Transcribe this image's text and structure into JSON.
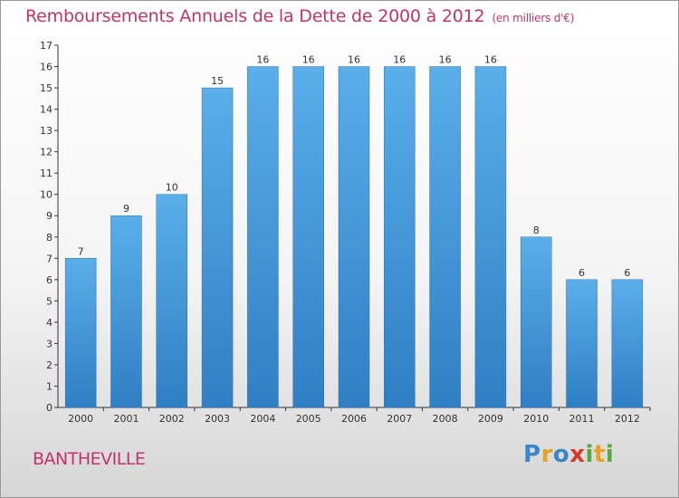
{
  "header": {
    "title": "Remboursements Annuels de la Dette de 2000 à 2012",
    "unit": "(en milliers d'€)"
  },
  "location": "BANTHEVILLE",
  "logo": {
    "letters": [
      "P",
      "r",
      "o",
      "x",
      "i",
      "t",
      "i"
    ],
    "colors": [
      "#3a86c8",
      "#e8a020",
      "#3a86c8",
      "#d23a2a",
      "#58a83c",
      "#e8a020",
      "#58a83c"
    ]
  },
  "chart_data": {
    "type": "bar",
    "categories": [
      "2000",
      "2001",
      "2002",
      "2003",
      "2004",
      "2005",
      "2006",
      "2007",
      "2008",
      "2009",
      "2010",
      "2011",
      "2012"
    ],
    "values": [
      7,
      9,
      10,
      15,
      16,
      16,
      16,
      16,
      16,
      16,
      8,
      6,
      6
    ],
    "title": "Remboursements Annuels de la Dette de 2000 à 2012",
    "subtitle": "(en milliers d'€)",
    "xlabel": "",
    "ylabel": "",
    "ylim": [
      0,
      17
    ],
    "yticks": [
      0,
      1,
      2,
      3,
      4,
      5,
      6,
      7,
      8,
      9,
      10,
      11,
      12,
      13,
      14,
      15,
      16,
      17
    ],
    "grid": false,
    "bar_color": "#4a9fe0"
  }
}
